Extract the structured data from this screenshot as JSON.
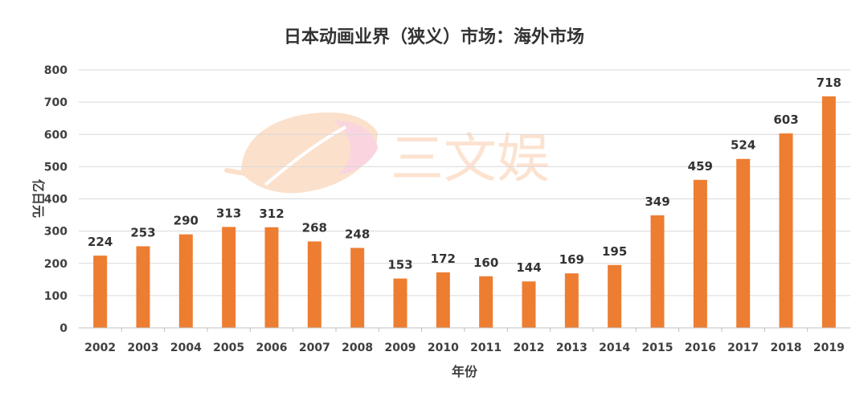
{
  "chart_data": {
    "type": "bar",
    "title": "日本动画业界（狭义）市场：海外市场",
    "xlabel": "年份",
    "ylabel": "亿日元",
    "categories": [
      "2002",
      "2003",
      "2004",
      "2005",
      "2006",
      "2007",
      "2008",
      "2009",
      "2010",
      "2011",
      "2012",
      "2013",
      "2014",
      "2015",
      "2016",
      "2017",
      "2018",
      "2019"
    ],
    "values": [
      224,
      253,
      290,
      313,
      312,
      268,
      248,
      153,
      172,
      160,
      144,
      169,
      195,
      349,
      459,
      524,
      603,
      718
    ],
    "ylim": [
      0,
      800
    ],
    "yticks": [
      0,
      100,
      200,
      300,
      400,
      500,
      600,
      700,
      800
    ],
    "grid": true,
    "legend": "none",
    "bar_color": "#ED7D31",
    "grid_color": "#D9D9D9"
  },
  "watermark": {
    "text": "三文娱",
    "icon": "peach-logo-icon"
  }
}
